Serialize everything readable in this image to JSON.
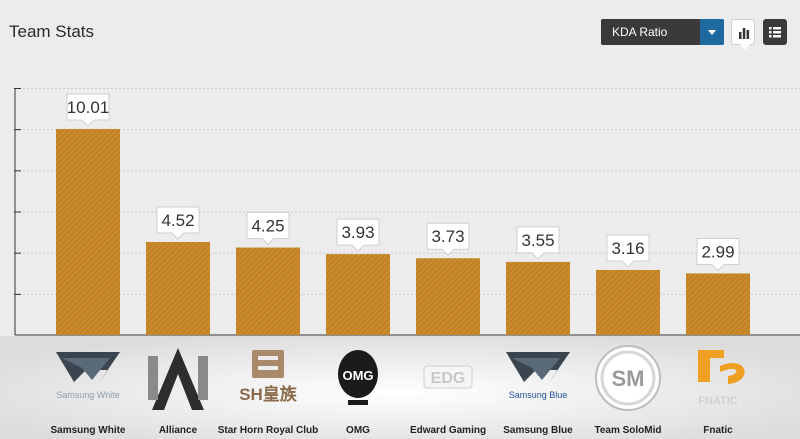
{
  "header": {
    "title": "Team Stats",
    "metric_select": {
      "selected": "KDA Ratio"
    }
  },
  "view_toggle": {
    "chart_icon": "bar-chart-icon",
    "list_icon": "list-icon",
    "active": "chart"
  },
  "colors": {
    "bar": "#c88a2b",
    "bar_hatch": "#b37620",
    "background": "#ececec"
  },
  "chart_data": {
    "type": "bar",
    "title": "",
    "xlabel": "",
    "ylabel": "",
    "categories": [
      "Samsung White",
      "Alliance",
      "Star Horn Royal Club",
      "OMG",
      "Edward Gaming",
      "Samsung Blue",
      "Team SoloMid",
      "Fnatic"
    ],
    "values": [
      10.01,
      4.52,
      4.25,
      3.93,
      3.73,
      3.55,
      3.16,
      2.99
    ],
    "value_labels": [
      "10.01",
      "4.52",
      "4.25",
      "3.93",
      "3.73",
      "3.55",
      "3.16",
      "2.99"
    ],
    "ylim": [
      0,
      12
    ],
    "grid": true,
    "y_tick_labels_shown": false
  },
  "teams": [
    {
      "name": "Samsung White",
      "logo_text": "Samsung White",
      "icon": "samsung-white-logo-icon"
    },
    {
      "name": "Alliance",
      "logo_text": "",
      "icon": "alliance-logo-icon"
    },
    {
      "name": "Star Horn Royal Club",
      "logo_text": "SH皇族",
      "icon": "star-horn-royal-club-logo-icon"
    },
    {
      "name": "OMG",
      "logo_text": "OMG",
      "icon": "omg-logo-icon"
    },
    {
      "name": "Edward Gaming",
      "logo_text": "EDG",
      "icon": "edward-gaming-logo-icon"
    },
    {
      "name": "Samsung Blue",
      "logo_text": "Samsung Blue",
      "icon": "samsung-blue-logo-icon"
    },
    {
      "name": "Team SoloMid",
      "logo_text": "SM",
      "icon": "team-solomid-logo-icon"
    },
    {
      "name": "Fnatic",
      "logo_text": "FNATIC",
      "icon": "fnatic-logo-icon"
    }
  ]
}
